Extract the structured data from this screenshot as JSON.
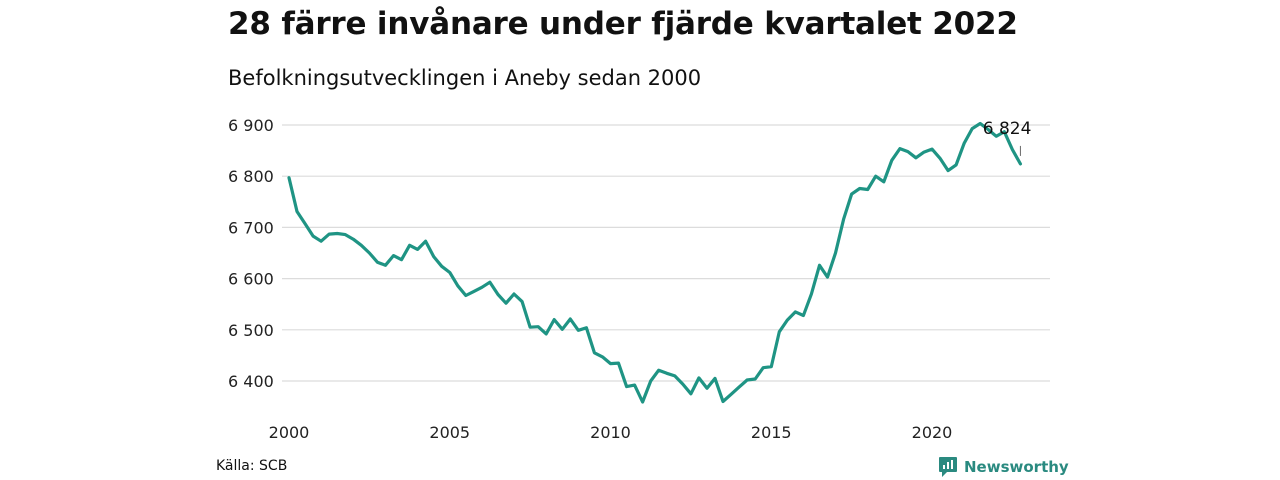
{
  "header": {
    "title": "28 färre invånare under fjärde kvartalet 2022",
    "subtitle": "Befolkningsutvecklingen i Aneby sedan 2000"
  },
  "footer": {
    "source": "Källa: SCB",
    "brand": "Newsworthy",
    "brand_color": "#2a8a80"
  },
  "chart_data": {
    "type": "line",
    "title": "28 färre invånare under fjärde kvartalet 2022",
    "subtitle": "Befolkningsutvecklingen i Aneby sedan 2000",
    "xlabel": "",
    "ylabel": "",
    "xlim": [
      2000,
      2023
    ],
    "ylim": [
      6345,
      6915
    ],
    "x_ticks": [
      2000,
      2005,
      2010,
      2015,
      2020
    ],
    "x_tick_labels": [
      "2000",
      "2005",
      "2010",
      "2015",
      "2020"
    ],
    "y_ticks": [
      6400,
      6500,
      6600,
      6700,
      6800,
      6900
    ],
    "y_tick_labels": [
      "6 400",
      "6 500",
      "6 600",
      "6 700",
      "6 800",
      "6 900"
    ],
    "grid": "horizontal",
    "line_color": "#1f9484",
    "annotation": {
      "x": 2022.75,
      "y": 6824,
      "label": "6 824"
    },
    "series": [
      {
        "values": [
          [
            2000.0,
            6797
          ],
          [
            2000.25,
            6731
          ],
          [
            2000.5,
            6707
          ],
          [
            2000.75,
            6683
          ],
          [
            2001.0,
            6673
          ],
          [
            2001.25,
            6687
          ],
          [
            2001.5,
            6688
          ],
          [
            2001.75,
            6686
          ],
          [
            2002.0,
            6677
          ],
          [
            2002.25,
            6665
          ],
          [
            2002.5,
            6650
          ],
          [
            2002.75,
            6632
          ],
          [
            2003.0,
            6626
          ],
          [
            2003.25,
            6645
          ],
          [
            2003.5,
            6637
          ],
          [
            2003.75,
            6665
          ],
          [
            2004.0,
            6657
          ],
          [
            2004.25,
            6673
          ],
          [
            2004.5,
            6643
          ],
          [
            2004.75,
            6624
          ],
          [
            2005.0,
            6612
          ],
          [
            2005.25,
            6586
          ],
          [
            2005.5,
            6567
          ],
          [
            2005.75,
            6575
          ],
          [
            2006.0,
            6583
          ],
          [
            2006.25,
            6593
          ],
          [
            2006.5,
            6569
          ],
          [
            2006.75,
            6552
          ],
          [
            2007.0,
            6570
          ],
          [
            2007.25,
            6555
          ],
          [
            2007.5,
            6505
          ],
          [
            2007.75,
            6506
          ],
          [
            2008.0,
            6492
          ],
          [
            2008.25,
            6520
          ],
          [
            2008.5,
            6501
          ],
          [
            2008.75,
            6521
          ],
          [
            2009.0,
            6499
          ],
          [
            2009.25,
            6504
          ],
          [
            2009.5,
            6455
          ],
          [
            2009.75,
            6447
          ],
          [
            2010.0,
            6434
          ],
          [
            2010.25,
            6435
          ],
          [
            2010.5,
            6389
          ],
          [
            2010.75,
            6392
          ],
          [
            2011.0,
            6359
          ],
          [
            2011.25,
            6400
          ],
          [
            2011.5,
            6421
          ],
          [
            2011.75,
            6415
          ],
          [
            2012.0,
            6410
          ],
          [
            2012.25,
            6394
          ],
          [
            2012.5,
            6375
          ],
          [
            2012.75,
            6406
          ],
          [
            2013.0,
            6386
          ],
          [
            2013.25,
            6405
          ],
          [
            2013.5,
            6360
          ],
          [
            2013.75,
            6374
          ],
          [
            2014.0,
            6388
          ],
          [
            2014.25,
            6402
          ],
          [
            2014.5,
            6404
          ],
          [
            2014.75,
            6426
          ],
          [
            2015.0,
            6428
          ],
          [
            2015.25,
            6496
          ],
          [
            2015.5,
            6519
          ],
          [
            2015.75,
            6535
          ],
          [
            2016.0,
            6528
          ],
          [
            2016.25,
            6570
          ],
          [
            2016.5,
            6626
          ],
          [
            2016.75,
            6603
          ],
          [
            2017.0,
            6650
          ],
          [
            2017.25,
            6716
          ],
          [
            2017.5,
            6765
          ],
          [
            2017.75,
            6776
          ],
          [
            2018.0,
            6774
          ],
          [
            2018.25,
            6800
          ],
          [
            2018.5,
            6789
          ],
          [
            2018.75,
            6831
          ],
          [
            2019.0,
            6854
          ],
          [
            2019.25,
            6848
          ],
          [
            2019.5,
            6836
          ],
          [
            2019.75,
            6847
          ],
          [
            2020.0,
            6853
          ],
          [
            2020.25,
            6835
          ],
          [
            2020.5,
            6811
          ],
          [
            2020.75,
            6822
          ],
          [
            2021.0,
            6864
          ],
          [
            2021.25,
            6893
          ],
          [
            2021.5,
            6903
          ],
          [
            2021.75,
            6891
          ],
          [
            2022.0,
            6878
          ],
          [
            2022.25,
            6887
          ],
          [
            2022.5,
            6852
          ],
          [
            2022.75,
            6824
          ]
        ]
      }
    ]
  }
}
